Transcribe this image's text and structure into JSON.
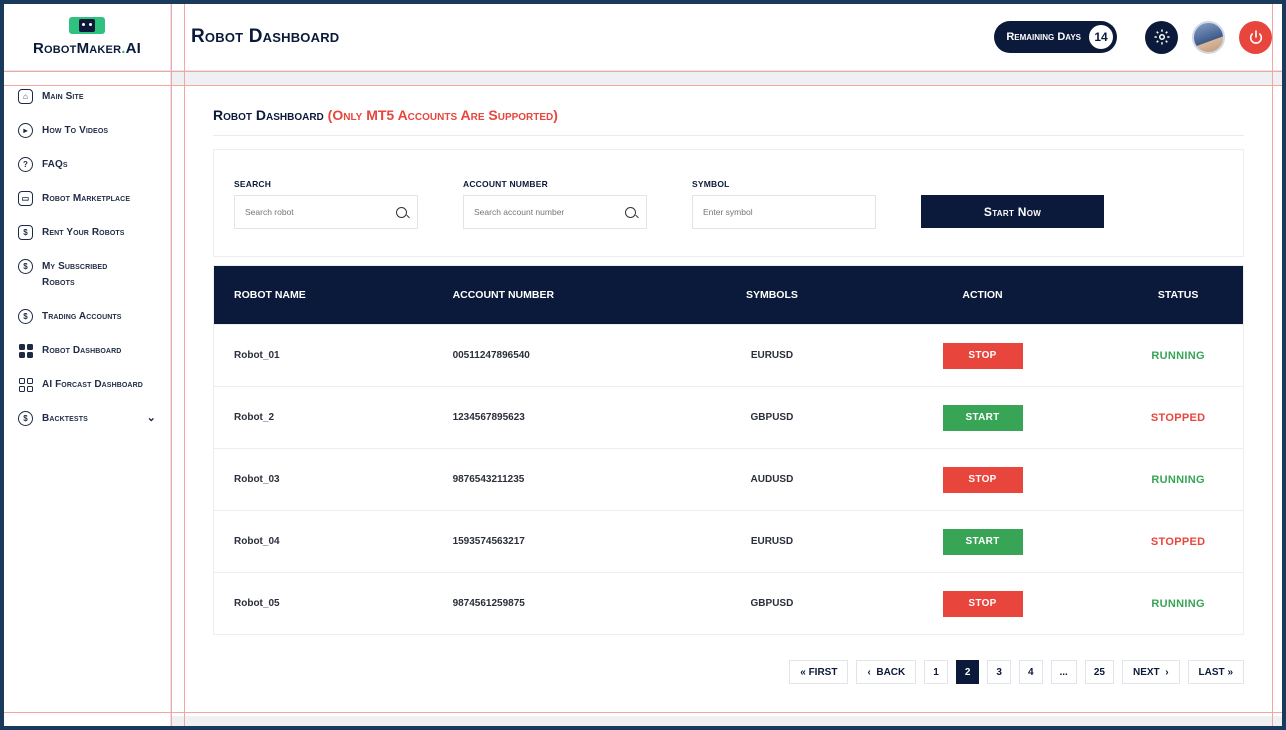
{
  "brand": {
    "name": "RobotMaker",
    "dot": ".",
    "suffix": "AI"
  },
  "header": {
    "title": "Robot Dashboard",
    "remaining_label": "Remaining Days",
    "remaining_value": "14"
  },
  "sidebar": {
    "items": [
      {
        "label": "Main Site"
      },
      {
        "label": "How To Videos"
      },
      {
        "label": "FAQs"
      },
      {
        "label": "Robot Marketplace"
      },
      {
        "label": "Rent Your Robots"
      },
      {
        "label": "My Subscribed Robots"
      },
      {
        "label": "Trading Accounts"
      },
      {
        "label": "Robot Dashboard"
      },
      {
        "label": "AI Forcast Dashboard"
      },
      {
        "label": "Backtests"
      }
    ]
  },
  "main": {
    "title": "Robot Dashboard",
    "title_note": "(Only MT5 Accounts Are Supported)",
    "filters": {
      "search_label": "SEARCH",
      "search_placeholder": "Search robot",
      "account_label": "ACCOUNT NUMBER",
      "account_placeholder": "Search account number",
      "symbol_label": "SYMBOL",
      "symbol_placeholder": "Enter symbol",
      "start_button": "Start Now"
    },
    "table": {
      "headers": [
        "ROBOT NAME",
        "ACCOUNT NUMBER",
        "SYMBOLS",
        "ACTION",
        "STATUS"
      ],
      "rows": [
        {
          "name": "Robot_01",
          "account": "00511247896540",
          "symbol": "EURUSD",
          "action": "STOP",
          "status": "RUNNING"
        },
        {
          "name": "Robot_2",
          "account": "1234567895623",
          "symbol": "GBPUSD",
          "action": "START",
          "status": "STOPPED"
        },
        {
          "name": "Robot_03",
          "account": "9876543211235",
          "symbol": "AUDUSD",
          "action": "STOP",
          "status": "RUNNING"
        },
        {
          "name": "Robot_04",
          "account": "1593574563217",
          "symbol": "EURUSD",
          "action": "START",
          "status": "STOPPED"
        },
        {
          "name": "Robot_05",
          "account": "9874561259875",
          "symbol": "GBPUSD",
          "action": "STOP",
          "status": "RUNNING"
        }
      ]
    },
    "pagination": {
      "first": "FIRST",
      "back": "BACK",
      "pages": [
        "1",
        "2",
        "3",
        "4",
        "...",
        "25"
      ],
      "current": "2",
      "next": "NEXT",
      "last": "LAST",
      "first_glyph": "«",
      "back_glyph": "‹",
      "next_glyph": "›",
      "last_glyph": "»"
    }
  },
  "colors": {
    "navy": "#0b1a3a",
    "red": "#e8453c",
    "green": "#37a456",
    "brand_green": "#2ec27e"
  },
  "icons": {
    "main_site": "home-icon",
    "videos": "play-icon",
    "faqs": "question-icon",
    "marketplace": "store-icon",
    "rent": "dollar-icon",
    "subscribed": "dollar-refresh-icon",
    "trading": "dollar-refresh-icon",
    "robot_dashboard": "grid-icon",
    "ai_forcast": "grid-outline-icon",
    "backtests": "dollar-refresh-icon",
    "settings": "gear-icon",
    "power": "power-icon"
  }
}
